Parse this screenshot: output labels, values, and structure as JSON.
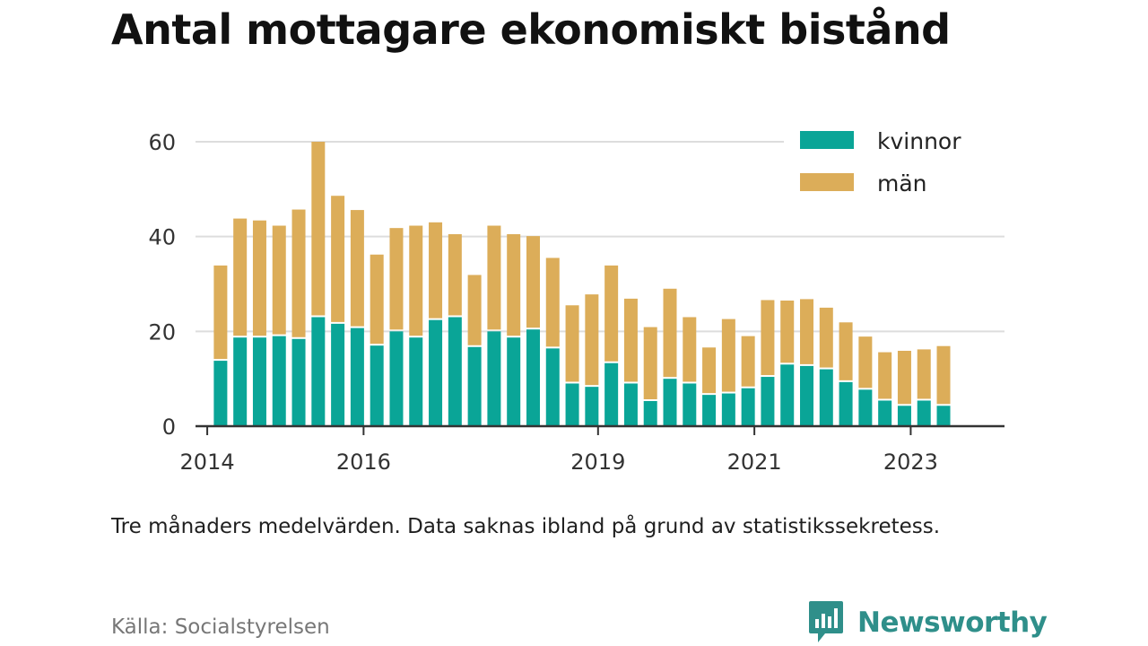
{
  "title": "Antal mottagare ekonomiskt bistånd",
  "note": "Tre månaders medelvärden. Data saknas ibland på grund av statistikssekretess.",
  "source": "Källa: Socialstyrelsen",
  "brand": {
    "name": "Newsworthy",
    "icon": "newsworthy-logo-icon"
  },
  "colors": {
    "kvinnor": "#0aa597",
    "man": "#dcad59",
    "grid": "#dddddd",
    "axis": "#333333"
  },
  "chart_data": {
    "type": "bar",
    "stacked": true,
    "xaxis": {
      "ticks": [
        "2014",
        "2016",
        "2019",
        "2021",
        "2023"
      ],
      "tick_positions": [
        2014.0,
        2016.0,
        2019.0,
        2021.0,
        2023.0
      ],
      "range": [
        2013.85,
        2024.2
      ]
    },
    "yaxis": {
      "ticks": [
        "0",
        "20",
        "40",
        "60"
      ],
      "range": [
        0,
        60
      ]
    },
    "grid": true,
    "legend": {
      "position": "top-right",
      "entries": [
        "kvinnor",
        "män"
      ]
    },
    "x": [
      2014.17,
      2014.42,
      2014.67,
      2014.92,
      2015.17,
      2015.42,
      2015.67,
      2015.92,
      2016.17,
      2016.42,
      2016.67,
      2016.92,
      2017.17,
      2017.42,
      2017.67,
      2017.92,
      2018.17,
      2018.42,
      2018.67,
      2018.92,
      2019.17,
      2019.42,
      2019.67,
      2019.92,
      2020.17,
      2020.42,
      2020.67,
      2020.92,
      2021.17,
      2021.42,
      2021.67,
      2021.92,
      2022.17,
      2022.42,
      2022.67,
      2022.92,
      2023.17,
      2023.42
    ],
    "series": [
      {
        "name": "kvinnor",
        "values": [
          13.8,
          18.7,
          18.7,
          19.0,
          18.4,
          23.0,
          21.6,
          20.7,
          17.0,
          20.0,
          18.7,
          22.4,
          23.0,
          16.7,
          20.0,
          18.7,
          20.4,
          16.4,
          9.0,
          8.3,
          13.3,
          9.0,
          5.3,
          10.0,
          9.0,
          6.6,
          6.9,
          8.0,
          10.4,
          13.0,
          12.7,
          12.0,
          9.3,
          7.7,
          5.4,
          4.3,
          5.4,
          4.3
        ]
      },
      {
        "name": "män",
        "values": [
          20.1,
          25.1,
          24.7,
          23.3,
          27.3,
          37.0,
          27.0,
          24.9,
          19.2,
          21.8,
          23.6,
          20.6,
          17.5,
          15.2,
          22.3,
          21.8,
          19.7,
          19.1,
          16.5,
          19.5,
          20.6,
          17.9,
          15.6,
          19.0,
          14.0,
          10.0,
          15.7,
          11.0,
          16.2,
          13.5,
          14.1,
          13.0,
          12.6,
          11.2,
          10.2,
          11.6,
          10.8,
          12.6
        ]
      }
    ]
  }
}
